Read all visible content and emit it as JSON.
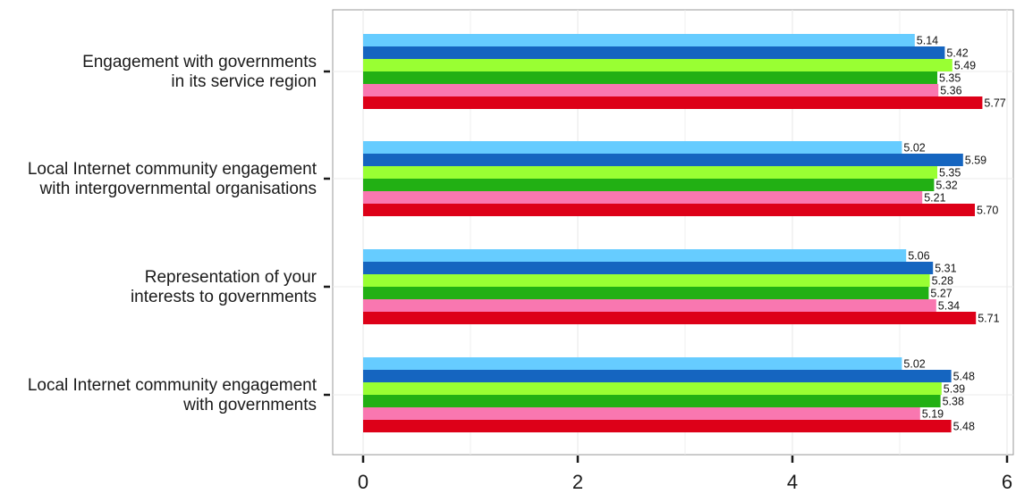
{
  "chart_data": {
    "type": "bar",
    "orientation": "horizontal",
    "categories": [
      [
        "Engagement with governments",
        "in its service region"
      ],
      [
        "Local Internet community engagement",
        "with intergovernmental organisations"
      ],
      [
        "Representation of your",
        "interests to governments"
      ],
      [
        "Local Internet community engagement",
        "with governments"
      ]
    ],
    "series": [
      {
        "color": "#66ccff",
        "values": [
          5.14,
          5.02,
          5.06,
          5.02
        ],
        "labels": [
          "5.14",
          "5.02",
          "5.06",
          "5.02"
        ]
      },
      {
        "color": "#1565c0",
        "values": [
          5.42,
          5.59,
          5.31,
          5.48
        ],
        "labels": [
          "5.42",
          "5.59",
          "5.31",
          "5.48"
        ]
      },
      {
        "color": "#99ff33",
        "values": [
          5.49,
          5.35,
          5.28,
          5.39
        ],
        "labels": [
          "5.49",
          "5.35",
          "5.28",
          "5.39"
        ]
      },
      {
        "color": "#22b014",
        "values": [
          5.35,
          5.32,
          5.27,
          5.38
        ],
        "labels": [
          "5.35",
          "5.32",
          "5.27",
          "5.38"
        ]
      },
      {
        "color": "#f977b0",
        "values": [
          5.36,
          5.21,
          5.34,
          5.19
        ],
        "labels": [
          "5.36",
          "5.21",
          "5.34",
          "5.19"
        ]
      },
      {
        "color": "#dd0018",
        "values": [
          5.77,
          5.7,
          5.71,
          5.48
        ],
        "labels": [
          "5.77",
          "5.70",
          "5.71",
          "5.48"
        ]
      }
    ],
    "xlim": [
      -0.28,
      6.0
    ],
    "xticks": [
      0,
      2,
      4,
      6
    ],
    "xtick_labels": [
      "0",
      "2",
      "4",
      "6"
    ],
    "grid": true,
    "legend": "none",
    "title": "",
    "xlabel": "",
    "ylabel": ""
  }
}
